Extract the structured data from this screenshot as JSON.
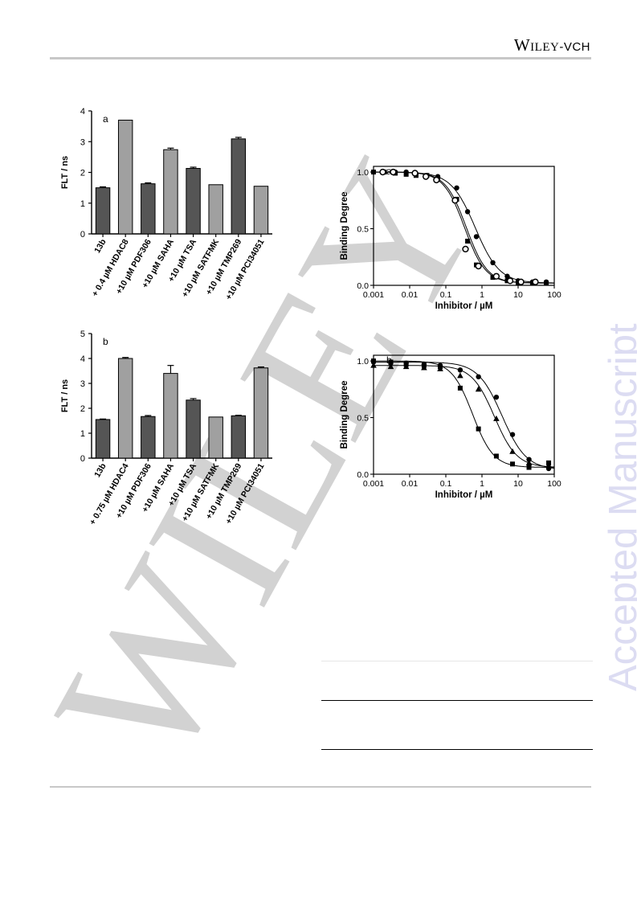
{
  "header": {
    "publisher_main": "Wiley",
    "publisher_suffix": "-VCH"
  },
  "watermark": {
    "side_text": "Accepted Manuscript",
    "diagonal_text": "WILEY"
  },
  "colors": {
    "dark_bar": "#555555",
    "light_bar": "#a0a0a0",
    "watermark_side": "#dcdcf2",
    "watermark_diag": "#d2d2d2"
  },
  "chart_data": [
    {
      "id": "bar-a",
      "type": "bar",
      "panel_label": "a",
      "ylabel": "FLT / ns",
      "ylim": [
        0,
        4
      ],
      "yticks": [
        0,
        1,
        2,
        3,
        4
      ],
      "categories": [
        "13b",
        "+ 0.4 µM HDAC8",
        "+10 µM PDF306",
        "+10 µM SAHA",
        "+10 µM TSA",
        "+10 µM SATFMK",
        "+10 µM TMP269",
        "+10 µM PCI34051"
      ],
      "values": [
        1.5,
        3.7,
        1.63,
        2.74,
        2.13,
        1.6,
        3.09,
        1.55
      ],
      "errors": [
        0.03,
        0,
        0.03,
        0.05,
        0.04,
        0,
        0.05,
        0
      ],
      "shades": [
        "dark",
        "light",
        "dark",
        "light",
        "dark",
        "light",
        "dark",
        "light"
      ]
    },
    {
      "id": "bar-b",
      "type": "bar",
      "panel_label": "b",
      "ylabel": "FLT / ns",
      "ylim": [
        0,
        5
      ],
      "yticks": [
        0,
        1,
        2,
        3,
        4,
        5
      ],
      "categories": [
        "13b",
        "+ 0.75 µM HDAC4",
        "+10 µM PDF306",
        "+10 µM SAHA",
        "+10 µM TSA",
        "+10 µM SATFMK",
        "+10 µM TMP269",
        "+10 µM PCI34051"
      ],
      "values": [
        1.55,
        4.0,
        1.67,
        3.4,
        2.33,
        1.65,
        1.7,
        3.62
      ],
      "errors": [
        0.02,
        0.04,
        0.04,
        0.32,
        0.06,
        0,
        0.02,
        0.04
      ],
      "shades": [
        "dark",
        "light",
        "dark",
        "light",
        "dark",
        "light",
        "dark",
        "light"
      ]
    },
    {
      "id": "curve-a",
      "type": "scatter",
      "panel_label": "a",
      "xlabel": "Inhibitor / µM",
      "ylabel": "Binding Degree",
      "xscale": "log",
      "xlim": [
        0.001,
        100
      ],
      "ylim": [
        0,
        1.05
      ],
      "xticks": [
        0.001,
        0.01,
        0.1,
        1,
        10,
        100
      ],
      "xticklabels": [
        "0.001",
        "0.01",
        "0.1",
        "1",
        "10",
        "100"
      ],
      "yticks": [
        0,
        0.5,
        1
      ],
      "yticklabels": [
        "0.0",
        "0.5",
        "1.0"
      ],
      "series": [
        {
          "marker": "square",
          "x": [
            0.001,
            0.002,
            0.004,
            0.008,
            0.015,
            0.03,
            0.06,
            0.2,
            0.4,
            0.7,
            2.0,
            5.0,
            10,
            25,
            60
          ],
          "y": [
            1.0,
            1.0,
            0.99,
            0.98,
            0.97,
            0.97,
            0.94,
            0.76,
            0.39,
            0.18,
            0.07,
            0.04,
            0.02,
            0.02,
            0.02
          ],
          "fit": {
            "top": 1.0,
            "bottom": 0.02,
            "ic50": 0.33,
            "hill": 1.5
          }
        },
        {
          "marker": "filled-circle",
          "x": [
            0.001,
            0.002,
            0.004,
            0.008,
            0.015,
            0.03,
            0.06,
            0.2,
            0.4,
            0.7,
            2.0,
            5.0,
            10,
            25,
            60
          ],
          "y": [
            1.0,
            1.0,
            1.0,
            1.0,
            0.98,
            0.97,
            0.96,
            0.86,
            0.65,
            0.43,
            0.2,
            0.08,
            0.04,
            0.03,
            0.03
          ],
          "fit": {
            "top": 1.0,
            "bottom": 0.02,
            "ic50": 0.65,
            "hill": 1.3
          }
        },
        {
          "marker": "open-circle",
          "x": [
            0.0018,
            0.0035,
            0.014,
            0.028,
            0.055,
            0.18,
            0.35,
            0.8,
            2.5,
            6.0,
            12,
            30
          ],
          "y": [
            1.0,
            1.0,
            0.99,
            0.96,
            0.93,
            0.75,
            0.32,
            0.17,
            0.08,
            0.04,
            0.03,
            0.03
          ],
          "fit": {
            "top": 1.0,
            "bottom": 0.02,
            "ic50": 0.37,
            "hill": 1.5
          }
        }
      ]
    },
    {
      "id": "curve-b",
      "type": "scatter",
      "panel_label": "b",
      "xlabel": "Inhibitor / µM",
      "ylabel": "Binding Degree",
      "xscale": "log",
      "xlim": [
        0.001,
        100
      ],
      "ylim": [
        0,
        1.05
      ],
      "xticks": [
        0.001,
        0.01,
        0.1,
        1,
        10,
        100
      ],
      "xticklabels": [
        "0.001",
        "0.01",
        "0.1",
        "1",
        "10",
        "100"
      ],
      "yticks": [
        0,
        0.5,
        1
      ],
      "yticklabels": [
        "0.0",
        "0.5",
        "1.0"
      ],
      "series": [
        {
          "marker": "square",
          "x": [
            0.001,
            0.003,
            0.008,
            0.025,
            0.07,
            0.25,
            0.8,
            2.5,
            7.0,
            20,
            70
          ],
          "y": [
            1.0,
            0.99,
            0.97,
            0.96,
            0.95,
            0.76,
            0.4,
            0.16,
            0.09,
            0.06,
            0.1
          ],
          "fit": {
            "top": 1.0,
            "bottom": 0.06,
            "ic50": 0.55,
            "hill": 1.5
          }
        },
        {
          "marker": "filled-circle",
          "x": [
            0.001,
            0.003,
            0.008,
            0.025,
            0.07,
            0.25,
            0.8,
            2.5,
            7.0,
            20,
            70
          ],
          "y": [
            0.99,
            0.98,
            0.98,
            0.97,
            0.96,
            0.92,
            0.86,
            0.68,
            0.35,
            0.13,
            0.05
          ],
          "fit": {
            "top": 0.99,
            "bottom": 0.04,
            "ic50": 3.6,
            "hill": 1.3
          }
        },
        {
          "marker": "triangle",
          "x": [
            0.001,
            0.003,
            0.008,
            0.025,
            0.07,
            0.25,
            0.8,
            2.5,
            7.0,
            20,
            70
          ],
          "y": [
            0.96,
            0.95,
            0.95,
            0.94,
            0.93,
            0.87,
            0.75,
            0.49,
            0.2,
            0.1,
            0.08
          ],
          "fit": {
            "top": 0.96,
            "bottom": 0.06,
            "ic50": 2.2,
            "hill": 1.4
          }
        }
      ]
    }
  ]
}
